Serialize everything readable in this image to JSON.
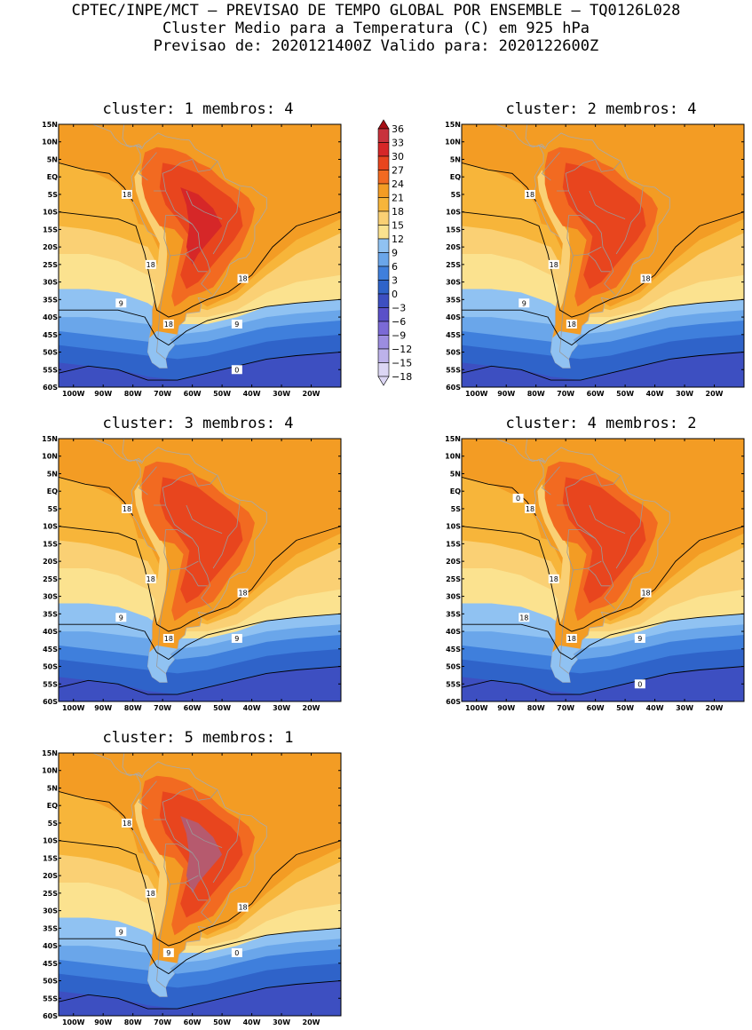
{
  "header": {
    "line1": "CPTEC/INPE/MCT – PREVISAO DE TEMPO GLOBAL POR ENSEMBLE – TQ0126L028",
    "line2": "Cluster Medio para a Temperatura (C) em 925 hPa",
    "line3": "Previsao de: 2020121400Z   Valido para: 2020122600Z"
  },
  "axes": {
    "lat_labels": [
      "15N",
      "10N",
      "5N",
      "EQ",
      "5S",
      "10S",
      "15S",
      "20S",
      "25S",
      "30S",
      "35S",
      "40S",
      "45S",
      "50S",
      "55S",
      "60S"
    ],
    "lon_labels": [
      "100W",
      "90W",
      "80W",
      "70W",
      "60W",
      "50W",
      "40W",
      "30W",
      "20W"
    ]
  },
  "colorbar": {
    "levels": [
      "36",
      "33",
      "30",
      "27",
      "24",
      "21",
      "18",
      "15",
      "12",
      "9",
      "6",
      "3",
      "0",
      "−3",
      "−6",
      "−9",
      "−12",
      "−15",
      "−18"
    ],
    "colors": [
      "#a50f15",
      "#c8323c",
      "#d62728",
      "#e8451e",
      "#f26a21",
      "#f39c24",
      "#f7b53a",
      "#fad074",
      "#fbe28f",
      "#90c2f2",
      "#6aa6ea",
      "#3f7fdc",
      "#2f63c9",
      "#3d4fc1",
      "#5a50c8",
      "#7b6ad6",
      "#9c8de0",
      "#bdb2ea",
      "#dcd6f4"
    ]
  },
  "clusters": [
    {
      "title": "cluster: 1   membros: 4",
      "contour_labels": [
        "18",
        "18",
        "18",
        "18",
        "9",
        "9",
        "0"
      ]
    },
    {
      "title": "cluster: 2   membros: 4",
      "contour_labels": [
        "18",
        "18",
        "18",
        "18",
        "9"
      ]
    },
    {
      "title": "cluster: 3   membros: 4",
      "contour_labels": [
        "18",
        "18",
        "18",
        "18",
        "9",
        "9"
      ]
    },
    {
      "title": "cluster: 4   membros: 2",
      "contour_labels": [
        "18",
        "18",
        "18",
        "18",
        "18",
        "9",
        "0",
        "0"
      ]
    },
    {
      "title": "cluster: 5   membros: 1",
      "contour_labels": [
        "18",
        "18",
        "18",
        "9",
        "9",
        "0"
      ]
    }
  ]
}
